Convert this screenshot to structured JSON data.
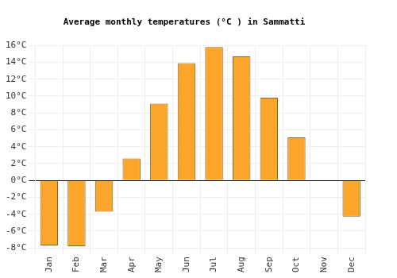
{
  "chart_data": {
    "type": "bar",
    "title": "Average monthly temperatures (°C ) in Sammatti",
    "categories": [
      "Jan",
      "Feb",
      "Mar",
      "Apr",
      "May",
      "Jun",
      "Jul",
      "Aug",
      "Sep",
      "Oct",
      "Nov",
      "Dec"
    ],
    "values": [
      -7.7,
      -7.8,
      -3.7,
      2.6,
      9.1,
      13.9,
      15.8,
      14.7,
      9.8,
      5.1,
      0,
      -4.3
    ],
    "color": "#fba52a",
    "ylim": [
      -8,
      16
    ],
    "yticks": [
      {
        "value": -8,
        "label": "-8°C"
      },
      {
        "value": -6,
        "label": "-6°C"
      },
      {
        "value": -4,
        "label": "-4°C"
      },
      {
        "value": -2,
        "label": "-2°C"
      },
      {
        "value": 0,
        "label": "0°C"
      },
      {
        "value": 2,
        "label": "2°C"
      },
      {
        "value": 4,
        "label": "4°C"
      },
      {
        "value": 6,
        "label": "6°C"
      },
      {
        "value": 8,
        "label": "8°C"
      },
      {
        "value": 10,
        "label": "10°C"
      },
      {
        "value": 12,
        "label": "12°C"
      },
      {
        "value": 14,
        "label": "14°C"
      },
      {
        "value": 16,
        "label": "16°C"
      }
    ],
    "grid": true
  }
}
